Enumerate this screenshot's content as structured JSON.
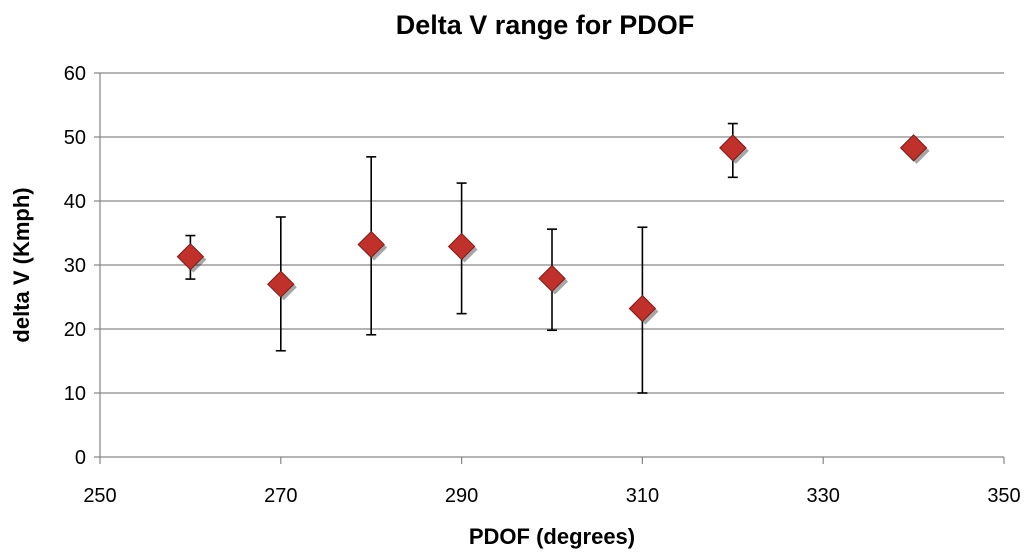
{
  "chart_data": {
    "type": "scatter",
    "title": "Delta V range for PDOF",
    "xlabel": "PDOF (degrees)",
    "ylabel": "delta V (Kmph)",
    "xlim": [
      250,
      350
    ],
    "ylim": [
      0,
      60
    ],
    "x_ticks": [
      250,
      270,
      290,
      310,
      330,
      350
    ],
    "y_ticks": [
      0,
      10,
      20,
      30,
      40,
      50,
      60
    ],
    "x_tick_labels": [
      "250",
      "270",
      "290",
      "310",
      "330",
      "350"
    ],
    "y_tick_labels": [
      "0",
      "10",
      "20",
      "30",
      "40",
      "50",
      "60"
    ],
    "grid": "horizontal major gridlines",
    "marker_color": "#c0312b",
    "error_bar_color": "#000000",
    "points": [
      {
        "x": 260,
        "y": 31.3,
        "y_low": 27.8,
        "y_high": 34.6
      },
      {
        "x": 270,
        "y": 27.0,
        "y_low": 16.6,
        "y_high": 37.5
      },
      {
        "x": 280,
        "y": 33.2,
        "y_low": 19.1,
        "y_high": 46.9
      },
      {
        "x": 290,
        "y": 32.9,
        "y_low": 22.4,
        "y_high": 42.8
      },
      {
        "x": 300,
        "y": 27.9,
        "y_low": 19.8,
        "y_high": 35.6
      },
      {
        "x": 310,
        "y": 23.2,
        "y_low": 10.0,
        "y_high": 35.9
      },
      {
        "x": 320,
        "y": 48.3,
        "y_low": 43.7,
        "y_high": 52.1
      },
      {
        "x": 340,
        "y": 48.3,
        "y_low": 48.3,
        "y_high": 48.3
      }
    ]
  }
}
